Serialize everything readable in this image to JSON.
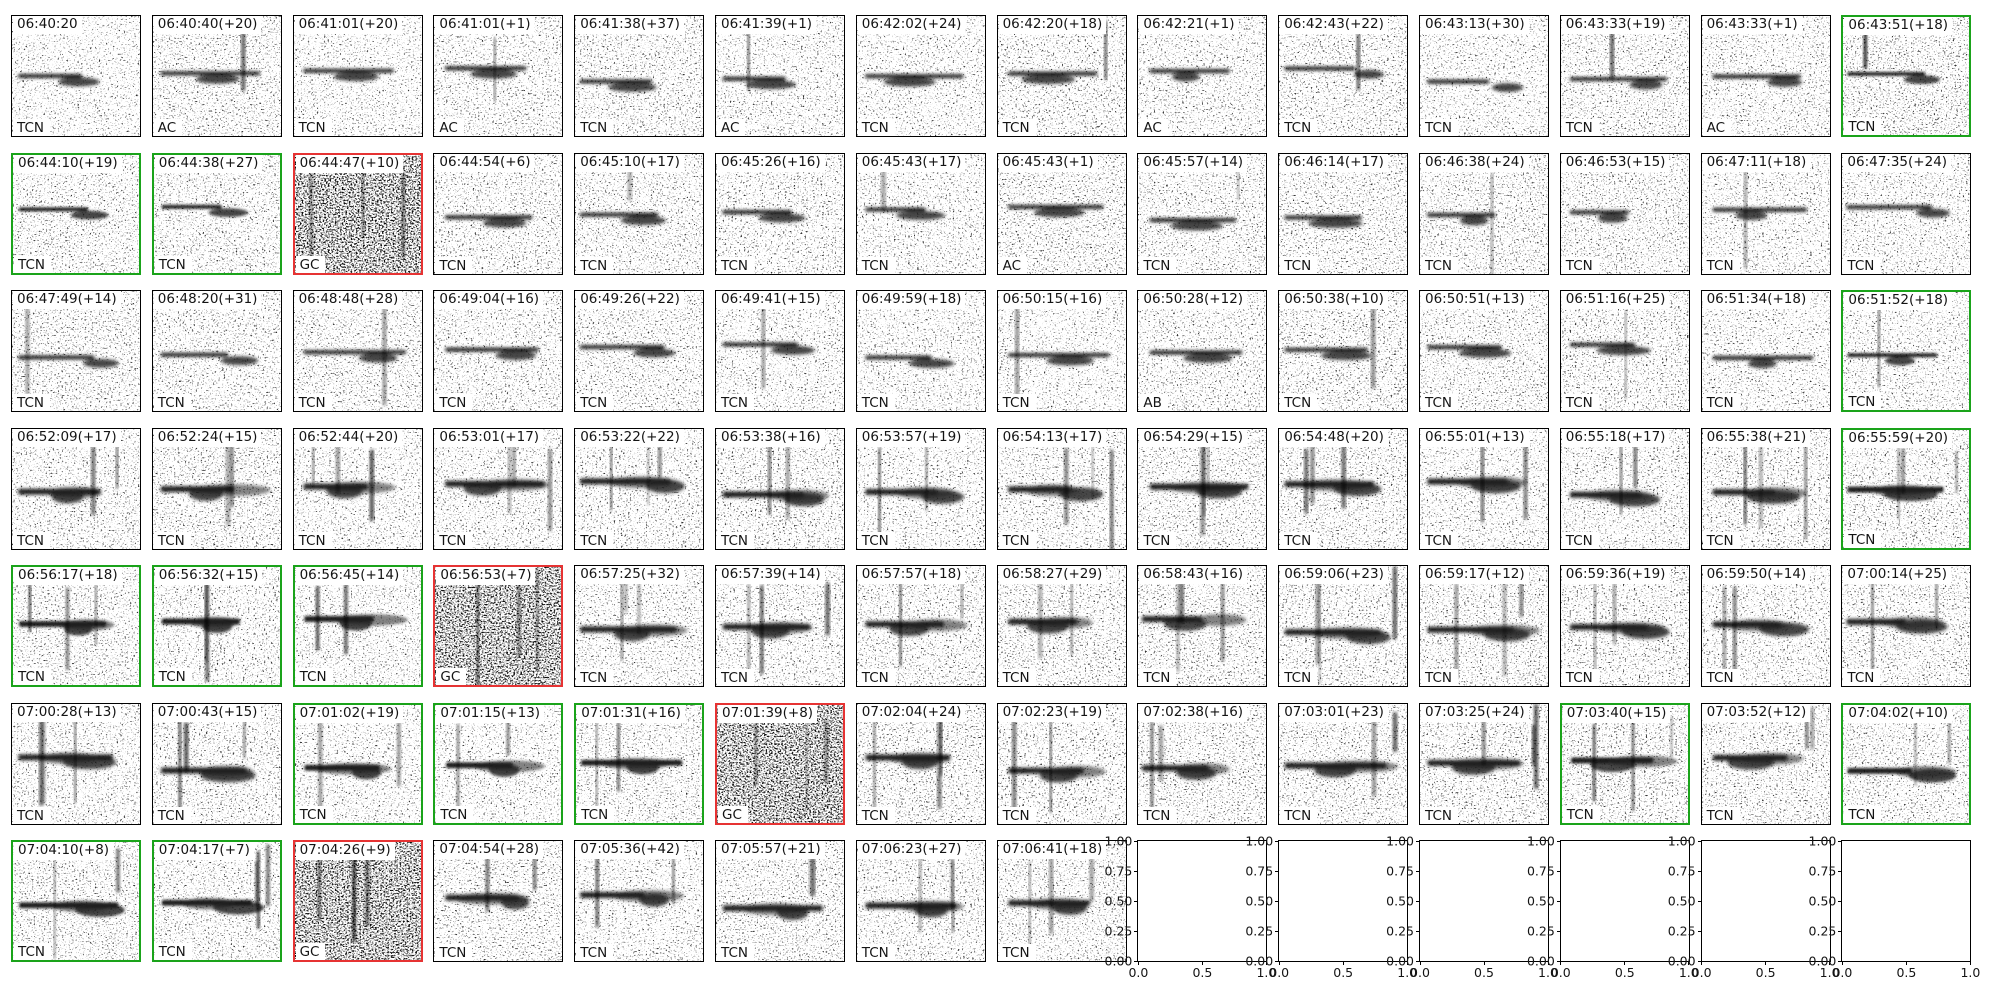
{
  "colors": {
    "border_default": "#000000",
    "border_green": "#1aa31a",
    "border_red": "#e63333",
    "text": "#141414",
    "background": "#ffffff"
  },
  "chart_data": {
    "type": "heatmap",
    "subtype": "spectrogram_thumbnail_grid",
    "rows": 7,
    "cols": 14,
    "legend_position": "none",
    "grid": false,
    "cells": [
      {
        "title": "06:40:20",
        "label": "TCN",
        "border": "black"
      },
      {
        "title": "06:40:40(+20)",
        "label": "AC",
        "border": "black"
      },
      {
        "title": "06:41:01(+20)",
        "label": "TCN",
        "border": "black"
      },
      {
        "title": "06:41:01(+1)",
        "label": "AC",
        "border": "black"
      },
      {
        "title": "06:41:38(+37)",
        "label": "TCN",
        "border": "black"
      },
      {
        "title": "06:41:39(+1)",
        "label": "AC",
        "border": "black"
      },
      {
        "title": "06:42:02(+24)",
        "label": "TCN",
        "border": "black"
      },
      {
        "title": "06:42:20(+18)",
        "label": "TCN",
        "border": "black"
      },
      {
        "title": "06:42:21(+1)",
        "label": "AC",
        "border": "black"
      },
      {
        "title": "06:42:43(+22)",
        "label": "TCN",
        "border": "black"
      },
      {
        "title": "06:43:13(+30)",
        "label": "TCN",
        "border": "black"
      },
      {
        "title": "06:43:33(+19)",
        "label": "TCN",
        "border": "black"
      },
      {
        "title": "06:43:33(+1)",
        "label": "AC",
        "border": "black"
      },
      {
        "title": "06:43:51(+18)",
        "label": "TCN",
        "border": "green"
      },
      {
        "title": "06:44:10(+19)",
        "label": "TCN",
        "border": "green"
      },
      {
        "title": "06:44:38(+27)",
        "label": "TCN",
        "border": "green"
      },
      {
        "title": "06:44:47(+10)",
        "label": "GC",
        "border": "red"
      },
      {
        "title": "06:44:54(+6)",
        "label": "TCN",
        "border": "black"
      },
      {
        "title": "06:45:10(+17)",
        "label": "TCN",
        "border": "black"
      },
      {
        "title": "06:45:26(+16)",
        "label": "TCN",
        "border": "black"
      },
      {
        "title": "06:45:43(+17)",
        "label": "TCN",
        "border": "black"
      },
      {
        "title": "06:45:43(+1)",
        "label": "AC",
        "border": "black"
      },
      {
        "title": "06:45:57(+14)",
        "label": "TCN",
        "border": "black"
      },
      {
        "title": "06:46:14(+17)",
        "label": "TCN",
        "border": "black"
      },
      {
        "title": "06:46:38(+24)",
        "label": "TCN",
        "border": "black"
      },
      {
        "title": "06:46:53(+15)",
        "label": "TCN",
        "border": "black"
      },
      {
        "title": "06:47:11(+18)",
        "label": "TCN",
        "border": "black"
      },
      {
        "title": "06:47:35(+24)",
        "label": "TCN",
        "border": "black"
      },
      {
        "title": "06:47:49(+14)",
        "label": "TCN",
        "border": "black"
      },
      {
        "title": "06:48:20(+31)",
        "label": "TCN",
        "border": "black"
      },
      {
        "title": "06:48:48(+28)",
        "label": "TCN",
        "border": "black"
      },
      {
        "title": "06:49:04(+16)",
        "label": "TCN",
        "border": "black"
      },
      {
        "title": "06:49:26(+22)",
        "label": "TCN",
        "border": "black"
      },
      {
        "title": "06:49:41(+15)",
        "label": "TCN",
        "border": "black"
      },
      {
        "title": "06:49:59(+18)",
        "label": "TCN",
        "border": "black"
      },
      {
        "title": "06:50:15(+16)",
        "label": "TCN",
        "border": "black"
      },
      {
        "title": "06:50:28(+12)",
        "label": "AB",
        "border": "black"
      },
      {
        "title": "06:50:38(+10)",
        "label": "TCN",
        "border": "black"
      },
      {
        "title": "06:50:51(+13)",
        "label": "TCN",
        "border": "black"
      },
      {
        "title": "06:51:16(+25)",
        "label": "TCN",
        "border": "black"
      },
      {
        "title": "06:51:34(+18)",
        "label": "TCN",
        "border": "black"
      },
      {
        "title": "06:51:52(+18)",
        "label": "TCN",
        "border": "green"
      },
      {
        "title": "06:52:09(+17)",
        "label": "TCN",
        "border": "black"
      },
      {
        "title": "06:52:24(+15)",
        "label": "TCN",
        "border": "black"
      },
      {
        "title": "06:52:44(+20)",
        "label": "TCN",
        "border": "black"
      },
      {
        "title": "06:53:01(+17)",
        "label": "TCN",
        "border": "black"
      },
      {
        "title": "06:53:22(+22)",
        "label": "TCN",
        "border": "black"
      },
      {
        "title": "06:53:38(+16)",
        "label": "TCN",
        "border": "black"
      },
      {
        "title": "06:53:57(+19)",
        "label": "TCN",
        "border": "black"
      },
      {
        "title": "06:54:13(+17)",
        "label": "TCN",
        "border": "black"
      },
      {
        "title": "06:54:29(+15)",
        "label": "TCN",
        "border": "black"
      },
      {
        "title": "06:54:48(+20)",
        "label": "TCN",
        "border": "black"
      },
      {
        "title": "06:55:01(+13)",
        "label": "TCN",
        "border": "black"
      },
      {
        "title": "06:55:18(+17)",
        "label": "TCN",
        "border": "black"
      },
      {
        "title": "06:55:38(+21)",
        "label": "TCN",
        "border": "black"
      },
      {
        "title": "06:55:59(+20)",
        "label": "TCN",
        "border": "green"
      },
      {
        "title": "06:56:17(+18)",
        "label": "TCN",
        "border": "green"
      },
      {
        "title": "06:56:32(+15)",
        "label": "TCN",
        "border": "green"
      },
      {
        "title": "06:56:45(+14)",
        "label": "TCN",
        "border": "green"
      },
      {
        "title": "06:56:53(+7)",
        "label": "GC",
        "border": "red"
      },
      {
        "title": "06:57:25(+32)",
        "label": "TCN",
        "border": "black"
      },
      {
        "title": "06:57:39(+14)",
        "label": "TCN",
        "border": "black"
      },
      {
        "title": "06:57:57(+18)",
        "label": "TCN",
        "border": "black"
      },
      {
        "title": "06:58:27(+29)",
        "label": "TCN",
        "border": "black"
      },
      {
        "title": "06:58:43(+16)",
        "label": "TCN",
        "border": "black"
      },
      {
        "title": "06:59:06(+23)",
        "label": "TCN",
        "border": "black"
      },
      {
        "title": "06:59:17(+12)",
        "label": "TCN",
        "border": "black"
      },
      {
        "title": "06:59:36(+19)",
        "label": "TCN",
        "border": "black"
      },
      {
        "title": "06:59:50(+14)",
        "label": "TCN",
        "border": "black"
      },
      {
        "title": "07:00:14(+25)",
        "label": "TCN",
        "border": "black"
      },
      {
        "title": "07:00:28(+13)",
        "label": "TCN",
        "border": "black"
      },
      {
        "title": "07:00:43(+15)",
        "label": "TCN",
        "border": "black"
      },
      {
        "title": "07:01:02(+19)",
        "label": "TCN",
        "border": "green"
      },
      {
        "title": "07:01:15(+13)",
        "label": "TCN",
        "border": "green"
      },
      {
        "title": "07:01:31(+16)",
        "label": "TCN",
        "border": "green"
      },
      {
        "title": "07:01:39(+8)",
        "label": "GC",
        "border": "red"
      },
      {
        "title": "07:02:04(+24)",
        "label": "TCN",
        "border": "black"
      },
      {
        "title": "07:02:23(+19)",
        "label": "TCN",
        "border": "black"
      },
      {
        "title": "07:02:38(+16)",
        "label": "TCN",
        "border": "black"
      },
      {
        "title": "07:03:01(+23)",
        "label": "TCN",
        "border": "black"
      },
      {
        "title": "07:03:25(+24)",
        "label": "TCN",
        "border": "black"
      },
      {
        "title": "07:03:40(+15)",
        "label": "TCN",
        "border": "green"
      },
      {
        "title": "07:03:52(+12)",
        "label": "TCN",
        "border": "black"
      },
      {
        "title": "07:04:02(+10)",
        "label": "TCN",
        "border": "green"
      },
      {
        "title": "07:04:10(+8)",
        "label": "TCN",
        "border": "green"
      },
      {
        "title": "07:04:17(+7)",
        "label": "TCN",
        "border": "green"
      },
      {
        "title": "07:04:26(+9)",
        "label": "GC",
        "border": "red"
      },
      {
        "title": "07:04:54(+28)",
        "label": "TCN",
        "border": "black"
      },
      {
        "title": "07:05:36(+42)",
        "label": "TCN",
        "border": "black"
      },
      {
        "title": "07:05:57(+21)",
        "label": "TCN",
        "border": "black"
      },
      {
        "title": "07:06:23(+27)",
        "label": "TCN",
        "border": "black"
      },
      {
        "title": "07:06:41(+18)",
        "label": "TCN",
        "border": "black"
      }
    ],
    "empty_plots": {
      "count": 6,
      "yticks": [
        "1.00",
        "0.75",
        "0.50",
        "0.25",
        "0.00"
      ],
      "xticks": [
        "0.0",
        "0.5",
        "1.0"
      ],
      "ylim": [
        0.0,
        1.0
      ],
      "xlim": [
        0.0,
        1.0
      ]
    }
  }
}
